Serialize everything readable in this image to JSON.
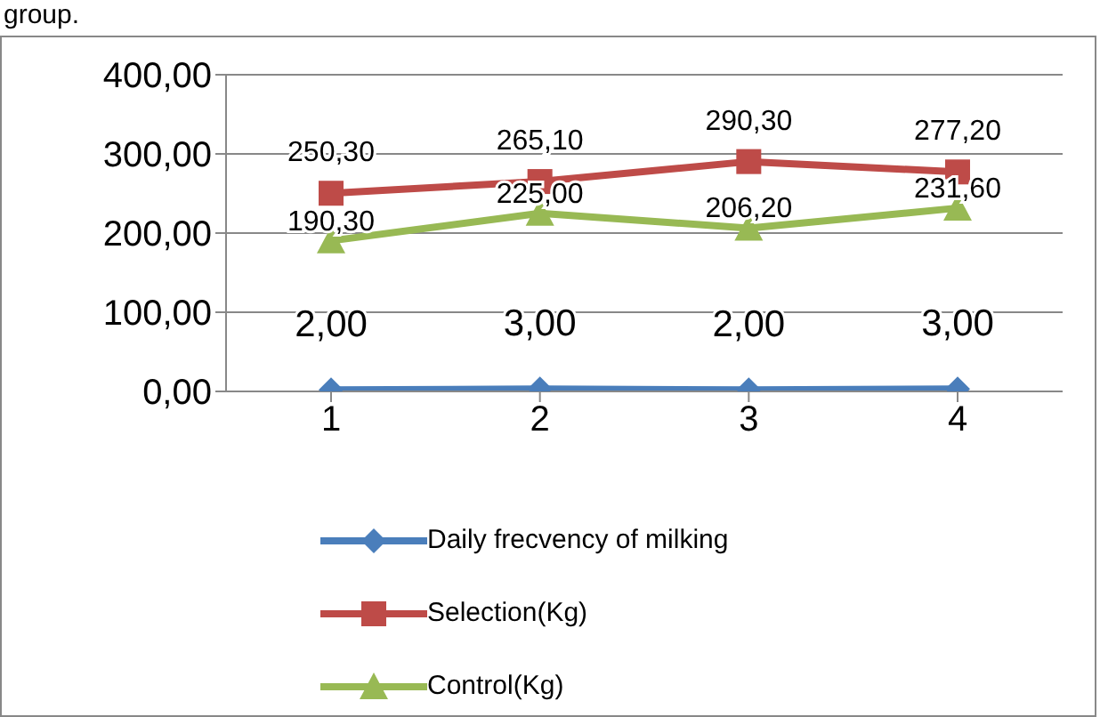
{
  "chart_data": {
    "type": "line",
    "annotations": [
      "group."
    ],
    "categories": [
      "1",
      "2",
      "3",
      "4"
    ],
    "series": [
      {
        "name": "Daily frecvency of milking",
        "color": "#4a7ebb",
        "marker": "diamond",
        "values": [
          2,
          3,
          2,
          3
        ],
        "value_labels": [
          "2,00",
          "3,00",
          "2,00",
          "3,00"
        ]
      },
      {
        "name": "Selection(Kg)",
        "color": "#be4b48",
        "marker": "square",
        "values": [
          250.3,
          265.1,
          290.3,
          277.2
        ],
        "value_labels": [
          "250,30",
          "265,10",
          "290,30",
          "277,20"
        ]
      },
      {
        "name": "Control(Kg)",
        "color": "#98b954",
        "marker": "triangle",
        "values": [
          190.3,
          225,
          206.2,
          231.6
        ],
        "value_labels": [
          "190,30",
          "225,00",
          "206,20",
          "231,60"
        ]
      }
    ],
    "ylim": [
      0,
      400
    ],
    "yticks": [
      {
        "value": 0,
        "label": "0,00"
      },
      {
        "value": 100,
        "label": "100,00"
      },
      {
        "value": 200,
        "label": "200,00"
      },
      {
        "value": 300,
        "label": "300,00"
      },
      {
        "value": 400,
        "label": "400,00"
      }
    ],
    "grid": "y",
    "legend": "bottom"
  }
}
